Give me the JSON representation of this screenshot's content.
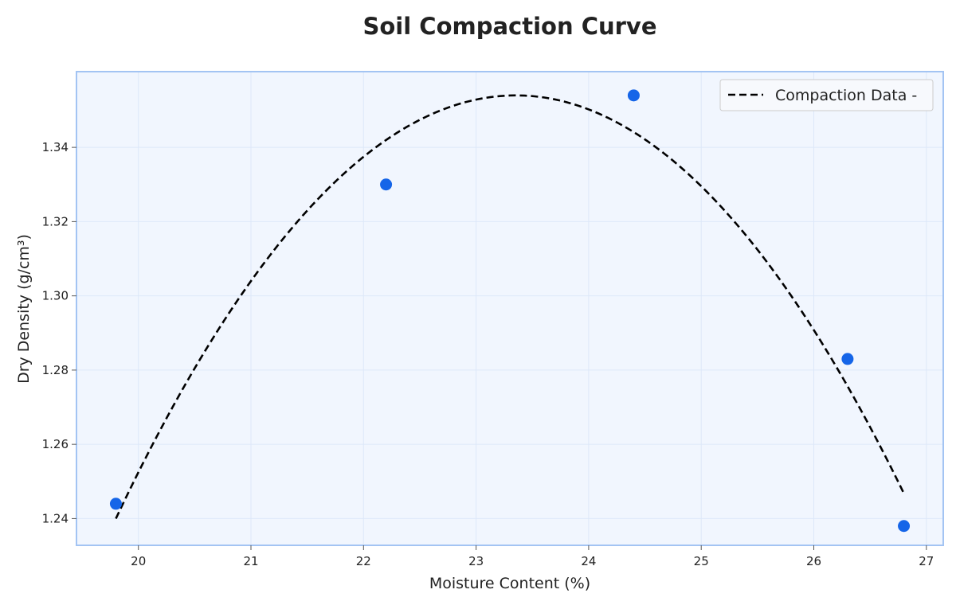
{
  "chart_data": {
    "type": "scatter",
    "title": "Soil Compaction Curve",
    "xlabel": "Moisture Content (%)",
    "ylabel": "Dry Density (g/cm³)",
    "xlim": [
      19.45,
      27.15
    ],
    "ylim": [
      1.2328,
      1.3604
    ],
    "x_ticks": [
      20,
      21,
      22,
      23,
      24,
      25,
      26,
      27
    ],
    "y_ticks": [
      1.24,
      1.26,
      1.28,
      1.3,
      1.32,
      1.34
    ],
    "y_tick_decimals": 2,
    "grid": true,
    "legend_position": "top-right",
    "points": {
      "x": [
        19.8,
        22.2,
        24.4,
        26.3,
        26.8
      ],
      "y": [
        1.244,
        1.33,
        1.354,
        1.283,
        1.238
      ],
      "color": "#1565e8"
    },
    "series": [
      {
        "name": "Compaction Data -",
        "type": "line",
        "style": "dashed",
        "color": "#000000",
        "x_range": [
          19.8,
          26.8
        ],
        "fit": "quadratic",
        "fit_points": {
          "x": [
            19.8,
            23.35,
            26.8
          ],
          "y": [
            1.24,
            1.354,
            1.2468
          ]
        }
      }
    ]
  },
  "colors": {
    "plot_background": "#f1f6fe",
    "plot_border": "#a3c4f3",
    "grid": "#dde8f9",
    "text": "#222222"
  }
}
